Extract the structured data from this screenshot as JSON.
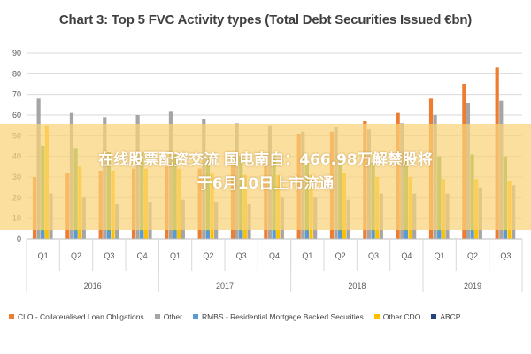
{
  "chart_data": {
    "type": "bar",
    "title": "Chart 3: Top 5 FVC Activity types (Total Debt Securities Issued €bn)",
    "categories": [
      "Q1",
      "Q2",
      "Q3",
      "Q4",
      "Q1",
      "Q2",
      "Q3",
      "Q4",
      "Q1",
      "Q2",
      "Q3",
      "Q4",
      "Q1",
      "Q2",
      "Q3"
    ],
    "years": [
      {
        "label": "2016",
        "span": 4
      },
      {
        "label": "2017",
        "span": 4
      },
      {
        "label": "2018",
        "span": 4
      },
      {
        "label": "2019",
        "span": 3
      }
    ],
    "ylim": [
      0,
      90
    ],
    "yticks": [
      0,
      10,
      20,
      30,
      40,
      50,
      60,
      70,
      80,
      90
    ],
    "grid": true,
    "legend_position": "bottom",
    "series": [
      {
        "name": "CLO - Collateralised Loan Obligations",
        "color": "#ED7D31",
        "values": [
          30,
          32,
          33,
          34,
          35,
          34,
          36,
          38,
          51,
          52,
          57,
          61,
          68,
          75,
          83
        ]
      },
      {
        "name": "Other",
        "color": "#A5A5A5",
        "values": [
          68,
          61,
          59,
          60,
          62,
          58,
          56,
          55,
          52,
          54,
          53,
          56,
          60,
          66,
          67
        ]
      },
      {
        "name": "RMBS - Residential Mortgage Backed Securities",
        "color": "#5B9BD5",
        "values": [
          45,
          44,
          42,
          42,
          41,
          40,
          40,
          40,
          38,
          38,
          37,
          38,
          40,
          41,
          40
        ]
      },
      {
        "name": "Other CDO",
        "color": "#FFC000",
        "values": [
          55,
          35,
          33,
          34,
          34,
          32,
          31,
          31,
          31,
          32,
          30,
          30,
          29,
          29,
          28
        ]
      },
      {
        "name": "ABCP",
        "color": "#264478",
        "values": [
          4,
          4,
          4,
          4,
          4,
          4,
          4,
          4,
          4,
          4,
          4,
          4,
          4,
          4,
          4
        ]
      }
    ],
    "extra_bar_note": "grey secondary bars",
    "extra_values": [
      22,
      20,
      17,
      18,
      19,
      18,
      17,
      20,
      20,
      19,
      22,
      22,
      22,
      25,
      26
    ]
  },
  "overlay": {
    "line1": "在线股票配资交流 国电南自：466.98万解禁股将",
    "line2": "于6月10日上市流通"
  }
}
